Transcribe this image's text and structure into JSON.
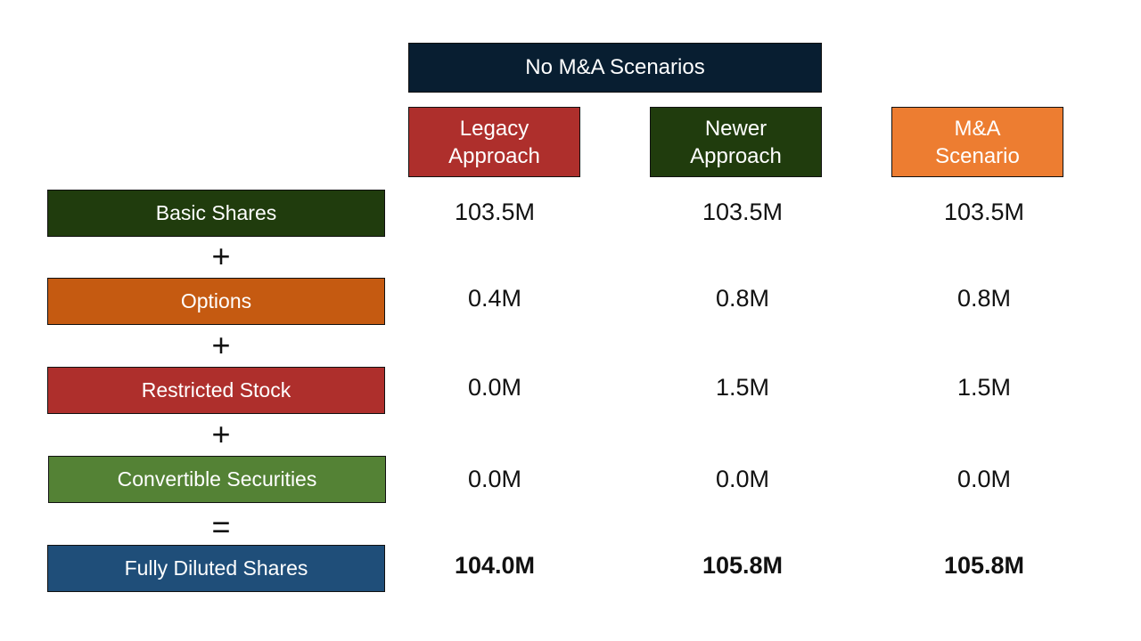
{
  "header": {
    "label": "No M&A Scenarios",
    "color": "#081e31"
  },
  "columns": [
    {
      "label": "Legacy\nApproach",
      "color": "#ae2f2c"
    },
    {
      "label": "Newer\nApproach",
      "color": "#203c0d"
    },
    {
      "label": "M&A\nScenario",
      "color": "#ed7d31"
    }
  ],
  "rows": [
    {
      "label": "Basic Shares",
      "color": "#203c0d",
      "values": [
        "103.5M",
        "103.5M",
        "103.5M"
      ]
    },
    {
      "label": "Options",
      "color": "#c55a11",
      "values": [
        "0.4M",
        "0.8M",
        "0.8M"
      ]
    },
    {
      "label": "Restricted Stock",
      "color": "#ae2f2c",
      "values": [
        "0.0M",
        "1.5M",
        "1.5M"
      ]
    },
    {
      "label": "Convertible Securities",
      "color": "#548235",
      "values": [
        "0.0M",
        "0.0M",
        "0.0M"
      ]
    },
    {
      "label": "Fully Diluted Shares",
      "color": "#1f4e79",
      "values": [
        "104.0M",
        "105.8M",
        "105.8M"
      ]
    }
  ],
  "operators": [
    "+",
    "+",
    "+",
    "="
  ]
}
